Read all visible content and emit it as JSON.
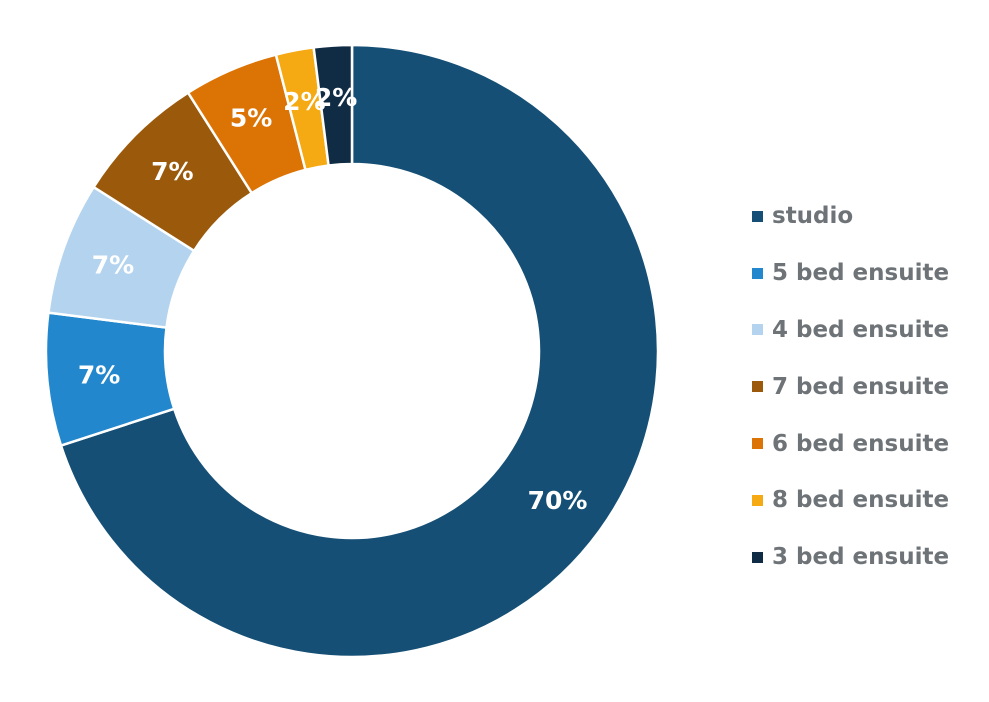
{
  "chart_data": {
    "type": "pie",
    "variant": "donut",
    "title": "",
    "legend_position": "right",
    "label_format": "percent",
    "slices": [
      {
        "name": "studio",
        "value": 70,
        "label": "70%",
        "color": "#154f75"
      },
      {
        "name": "5 bed ensuite",
        "value": 7,
        "label": "7%",
        "color": "#2287cc"
      },
      {
        "name": "4 bed ensuite",
        "value": 7,
        "label": "7%",
        "color": "#b3d3ee"
      },
      {
        "name": "7 bed ensuite",
        "value": 7,
        "label": "7%",
        "color": "#9b5a0b"
      },
      {
        "name": "6 bed ensuite",
        "value": 5,
        "label": "5%",
        "color": "#dc7405"
      },
      {
        "name": "8 bed ensuite",
        "value": 2,
        "label": "2%",
        "color": "#f5a912"
      },
      {
        "name": "3 bed ensuite",
        "value": 2,
        "label": "2%",
        "color": "#102c45"
      }
    ]
  }
}
